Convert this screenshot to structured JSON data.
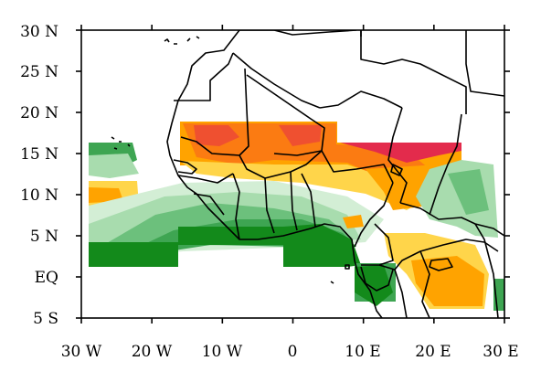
{
  "map": {
    "lat_labels": [
      "30 N",
      "25 N",
      "20 N",
      "15 N",
      "10 N",
      "5 N",
      "EQ",
      "5 S"
    ],
    "lon_labels": [
      "30 W",
      "20 W",
      "10 W",
      "0",
      "10 E",
      "20 E",
      "30 E"
    ],
    "extent": {
      "lon": [
        -30,
        30
      ],
      "lat": [
        -5,
        30
      ]
    },
    "palette": {
      "dark_green": "#138a1b",
      "mid_green": "#3ea552",
      "green": "#6cc07c",
      "light_green": "#a8dcae",
      "pale_green": "#d3eed5",
      "yellow": "#ffd54a",
      "orange": "#ffa300",
      "dark_orange": "#fb7b12",
      "red_orange": "#ef5030",
      "red": "#e32b4c"
    }
  }
}
